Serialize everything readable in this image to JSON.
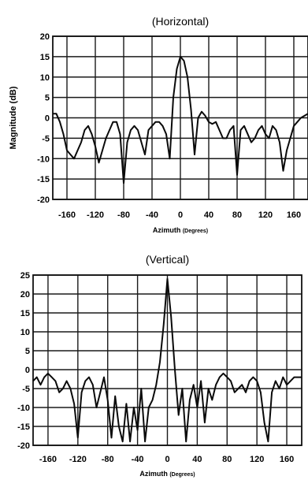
{
  "chart_data": [
    {
      "type": "line",
      "title": "(Horizontal)",
      "xlabel_main": "Azimuth",
      "xlabel_unit": "(Degrees)",
      "ylabel": "Magnitude (dB)",
      "xlim": [
        -180,
        180
      ],
      "ylim": [
        -20,
        20
      ],
      "xticks": [
        -160,
        -120,
        -80,
        -40,
        0,
        40,
        80,
        120,
        160
      ],
      "xtick_labels": [
        "-160",
        "-120",
        "-80",
        "-40",
        "0",
        "40",
        "80",
        "120",
        "160"
      ],
      "yticks": [
        20,
        15,
        10,
        5,
        0,
        -5,
        -10,
        -15,
        -20
      ],
      "ytick_labels": [
        "20",
        "15",
        "10",
        "5",
        "0",
        "-5",
        "-10",
        "-15",
        "-20"
      ],
      "grid": true,
      "x": [
        -180,
        -175,
        -170,
        -165,
        -160,
        -155,
        -150,
        -145,
        -140,
        -135,
        -130,
        -125,
        -120,
        -115,
        -110,
        -105,
        -100,
        -95,
        -90,
        -85,
        -80,
        -75,
        -70,
        -65,
        -60,
        -55,
        -50,
        -45,
        -40,
        -35,
        -30,
        -25,
        -20,
        -15,
        -10,
        -5,
        0,
        5,
        10,
        15,
        20,
        25,
        30,
        35,
        40,
        45,
        50,
        55,
        60,
        65,
        70,
        75,
        80,
        85,
        90,
        95,
        100,
        105,
        110,
        115,
        120,
        125,
        130,
        135,
        140,
        145,
        150,
        155,
        160,
        165,
        170,
        175,
        180
      ],
      "y": [
        1,
        1,
        -1,
        -4,
        -8,
        -9,
        -10,
        -8,
        -6,
        -3,
        -2,
        -4,
        -7,
        -11,
        -8,
        -5,
        -3,
        -1,
        -1,
        -4,
        -16,
        -6,
        -3,
        -2,
        -3,
        -6,
        -9,
        -3,
        -2,
        -1,
        -1,
        -2,
        -4,
        -10,
        5,
        12,
        15,
        14,
        10,
        2,
        -9,
        0,
        1.5,
        0.5,
        -1,
        -1.5,
        -1,
        -3,
        -5,
        -5,
        -3,
        -2,
        -14,
        -3,
        -2,
        -4,
        -6,
        -5,
        -3,
        -2,
        -4,
        -5,
        -2,
        -3,
        -6,
        -13,
        -8,
        -5,
        -2,
        -1,
        0,
        0.5,
        1
      ]
    },
    {
      "type": "line",
      "title": "(Vertical)",
      "xlabel_main": "Azimuth",
      "xlabel_unit": "(Degrees)",
      "ylabel": "",
      "xlim": [
        -180,
        180
      ],
      "ylim": [
        -20,
        25
      ],
      "xticks": [
        -160,
        -120,
        -80,
        -40,
        0,
        40,
        80,
        120,
        160
      ],
      "xtick_labels": [
        "-160",
        "-120",
        "-80",
        "-40",
        "0",
        "40",
        "80",
        "120",
        "160"
      ],
      "yticks": [
        25,
        20,
        15,
        10,
        5,
        0,
        -5,
        -10,
        -15,
        -20
      ],
      "ytick_labels": [
        "25",
        "20",
        "15",
        "10",
        "5",
        "0",
        "-5",
        "-10",
        "-15",
        "-20"
      ],
      "grid": true,
      "x": [
        -180,
        -175,
        -170,
        -165,
        -160,
        -155,
        -150,
        -145,
        -140,
        -135,
        -130,
        -125,
        -120,
        -115,
        -110,
        -105,
        -100,
        -95,
        -90,
        -85,
        -80,
        -75,
        -70,
        -65,
        -60,
        -55,
        -50,
        -45,
        -40,
        -35,
        -30,
        -25,
        -20,
        -15,
        -10,
        -5,
        0,
        5,
        10,
        15,
        20,
        25,
        30,
        35,
        40,
        45,
        50,
        55,
        60,
        65,
        70,
        75,
        80,
        85,
        90,
        95,
        100,
        105,
        110,
        115,
        120,
        125,
        130,
        135,
        140,
        145,
        150,
        155,
        160,
        165,
        170,
        175,
        180
      ],
      "y": [
        -3,
        -2,
        -4,
        -2,
        -1,
        -2,
        -3,
        -6,
        -5,
        -3,
        -5,
        -9,
        -18,
        -6,
        -3,
        -2,
        -4,
        -10,
        -6,
        -2,
        -8,
        -18,
        -7,
        -15,
        -19,
        -9,
        -19,
        -10,
        -16,
        -5,
        -19,
        -10,
        -8,
        -4,
        2,
        12,
        24,
        14,
        0,
        -12,
        -5,
        -19,
        -8,
        -4,
        -10,
        -3,
        -14,
        -5,
        -8,
        -4,
        -2,
        -1,
        -2,
        -3,
        -6,
        -5,
        -4,
        -6,
        -3,
        -2,
        -3,
        -6,
        -14,
        -19,
        -6,
        -3,
        -5,
        -2,
        -4,
        -3,
        -2,
        -2,
        -2
      ]
    }
  ]
}
